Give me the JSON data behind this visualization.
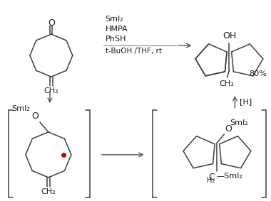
{
  "background": "#ffffff",
  "text_color": "#1a1a1a",
  "lc": "#404040",
  "reagents_line1": "SmI₂",
  "reagents_line2": "HMPA",
  "reagents_line3": "PhSH",
  "reagents_line4": "t-BuOH /THF, rt",
  "yield_text": "80%",
  "reduction_text": "[H]",
  "ch2_text": "CH₂",
  "ch3_text": "CH₃",
  "oh_text": "OH",
  "smi2_text": "SmI₂",
  "o_text": "O",
  "bracket_color": "#404040",
  "red_dot_color": "#cc0000",
  "arrow_color": "#555555"
}
